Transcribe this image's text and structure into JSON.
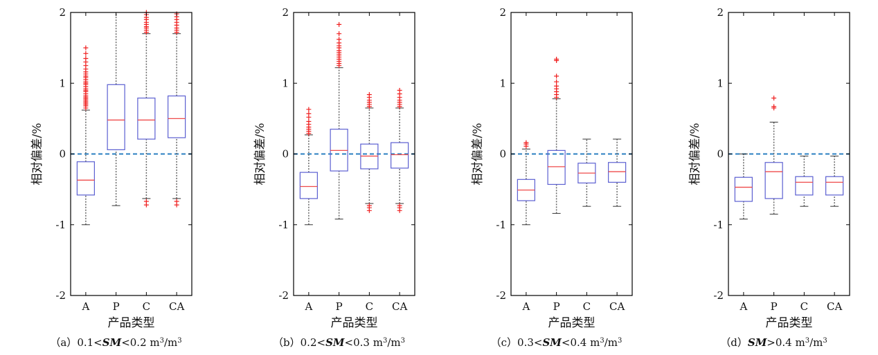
{
  "chart_data": [
    {
      "type": "boxplot",
      "caption_prefix": "（a）",
      "caption_pre": "0.1<",
      "caption_sm": "SM",
      "caption_post": "<0.2 m",
      "caption_sup": "3",
      "caption_end": "/m",
      "caption_sup2": "3",
      "xlabel": "产品类型",
      "ylabel": "相对偏差/%",
      "ylim": [
        -2,
        2
      ],
      "yticks": [
        2,
        1,
        0,
        -1,
        -2
      ],
      "reference_line": 0,
      "categories": [
        "A",
        "P",
        "C",
        "CA"
      ],
      "boxes": [
        {
          "label": "A",
          "whisker_low": -1.0,
          "q1": -0.58,
          "median": -0.37,
          "q3": -0.11,
          "whisker_high": 0.62,
          "outliers": [
            0.65,
            0.68,
            0.7,
            0.72,
            0.74,
            0.76,
            0.78,
            0.8,
            0.82,
            0.85,
            0.88,
            0.9,
            0.92,
            0.95,
            0.98,
            1.0,
            1.02,
            1.05,
            1.08,
            1.1,
            1.13,
            1.16,
            1.2,
            1.25,
            1.3,
            1.35,
            1.42,
            1.5
          ]
        },
        {
          "label": "P",
          "whisker_low": -0.73,
          "q1": 0.06,
          "median": 0.48,
          "q3": 0.98,
          "whisker_high": 2.0,
          "outliers": []
        },
        {
          "label": "C",
          "whisker_low": -0.63,
          "q1": 0.21,
          "median": 0.48,
          "q3": 0.79,
          "whisker_high": 1.7,
          "outliers": [
            1.72,
            1.75,
            1.78,
            1.8,
            1.83,
            1.86,
            1.9,
            1.93,
            1.97,
            2.0,
            -0.67,
            -0.72
          ]
        },
        {
          "label": "CA",
          "whisker_low": -0.63,
          "q1": 0.23,
          "median": 0.5,
          "q3": 0.82,
          "whisker_high": 1.7,
          "outliers": [
            1.72,
            1.75,
            1.78,
            1.82,
            1.86,
            1.9,
            1.94,
            1.98,
            -0.67,
            -0.72
          ]
        }
      ]
    },
    {
      "type": "boxplot",
      "caption_prefix": "（b）",
      "caption_pre": "0.2<",
      "caption_sm": "SM",
      "caption_post": "<0.3 m",
      "caption_sup": "3",
      "caption_end": "/m",
      "caption_sup2": "3",
      "xlabel": "产品类型",
      "ylabel": "相对偏差/%",
      "ylim": [
        -2,
        2
      ],
      "yticks": [
        2,
        1,
        0,
        -1,
        -2
      ],
      "reference_line": 0,
      "categories": [
        "A",
        "P",
        "C",
        "CA"
      ],
      "boxes": [
        {
          "label": "A",
          "whisker_low": -1.0,
          "q1": -0.63,
          "median": -0.46,
          "q3": -0.26,
          "whisker_high": 0.27,
          "outliers": [
            0.29,
            0.32,
            0.35,
            0.38,
            0.42,
            0.46,
            0.52,
            0.57,
            0.63
          ]
        },
        {
          "label": "P",
          "whisker_low": -0.92,
          "q1": -0.24,
          "median": 0.05,
          "q3": 0.35,
          "whisker_high": 1.22,
          "outliers": [
            1.25,
            1.28,
            1.31,
            1.34,
            1.37,
            1.4,
            1.43,
            1.46,
            1.5,
            1.53,
            1.57,
            1.62,
            1.7,
            1.83
          ]
        },
        {
          "label": "C",
          "whisker_low": -0.7,
          "q1": -0.21,
          "median": -0.03,
          "q3": 0.14,
          "whisker_high": 0.65,
          "outliers": [
            0.67,
            0.7,
            0.73,
            0.76,
            0.8,
            0.84,
            -0.73,
            -0.76,
            -0.8
          ]
        },
        {
          "label": "CA",
          "whisker_low": -0.7,
          "q1": -0.2,
          "median": -0.01,
          "q3": 0.16,
          "whisker_high": 0.65,
          "outliers": [
            0.67,
            0.7,
            0.73,
            0.76,
            0.8,
            0.85,
            0.9,
            -0.73,
            -0.76,
            -0.8
          ]
        }
      ]
    },
    {
      "type": "boxplot",
      "caption_prefix": "（c）",
      "caption_pre": "0.3<",
      "caption_sm": "SM",
      "caption_post": "<0.4 m",
      "caption_sup": "3",
      "caption_end": "/m",
      "caption_sup2": "3",
      "xlabel": "产品类型",
      "ylabel": "相对偏差/%",
      "ylim": [
        -2,
        2
      ],
      "yticks": [
        2,
        1,
        0,
        -1,
        -2
      ],
      "reference_line": 0,
      "categories": [
        "A",
        "P",
        "C",
        "CA"
      ],
      "boxes": [
        {
          "label": "A",
          "whisker_low": -1.0,
          "q1": -0.66,
          "median": -0.51,
          "q3": -0.36,
          "whisker_high": 0.07,
          "outliers": [
            0.11,
            0.14,
            0.16
          ]
        },
        {
          "label": "P",
          "whisker_low": -0.84,
          "q1": -0.43,
          "median": -0.18,
          "q3": 0.05,
          "whisker_high": 0.78,
          "outliers": [
            0.8,
            0.84,
            0.88,
            0.92,
            0.96,
            1.02,
            1.1,
            1.32,
            1.34
          ]
        },
        {
          "label": "C",
          "whisker_low": -0.74,
          "q1": -0.41,
          "median": -0.27,
          "q3": -0.13,
          "whisker_high": 0.21,
          "outliers": []
        },
        {
          "label": "CA",
          "whisker_low": -0.74,
          "q1": -0.4,
          "median": -0.25,
          "q3": -0.12,
          "whisker_high": 0.21,
          "outliers": []
        }
      ]
    },
    {
      "type": "boxplot",
      "caption_prefix": "（d）",
      "caption_pre": "",
      "caption_sm": "SM",
      "caption_post": ">0.4 m",
      "caption_sup": "3",
      "caption_end": "/m",
      "caption_sup2": "3",
      "xlabel": "产品类型",
      "ylabel": "相对偏差/%",
      "ylim": [
        -2,
        2
      ],
      "yticks": [
        2,
        1,
        0,
        -1,
        -2
      ],
      "reference_line": 0,
      "categories": [
        "A",
        "P",
        "C",
        "CA"
      ],
      "boxes": [
        {
          "label": "A",
          "whisker_low": -0.92,
          "q1": -0.67,
          "median": -0.47,
          "q3": -0.33,
          "whisker_high": 0.0,
          "outliers": []
        },
        {
          "label": "P",
          "whisker_low": -0.85,
          "q1": -0.63,
          "median": -0.25,
          "q3": -0.12,
          "whisker_high": 0.45,
          "outliers": [
            0.65,
            0.67,
            0.79
          ]
        },
        {
          "label": "C",
          "whisker_low": -0.74,
          "q1": -0.58,
          "median": -0.4,
          "q3": -0.32,
          "whisker_high": -0.03,
          "outliers": []
        },
        {
          "label": "CA",
          "whisker_low": -0.74,
          "q1": -0.58,
          "median": -0.4,
          "q3": -0.32,
          "whisker_high": -0.03,
          "outliers": []
        }
      ]
    }
  ],
  "colors": {
    "box": "#5b5fd1",
    "median": "#ef4a4a",
    "whisker": "#666666",
    "outlier": "#ef2020",
    "reference": "#2a7fc1",
    "axis": "#000000"
  }
}
